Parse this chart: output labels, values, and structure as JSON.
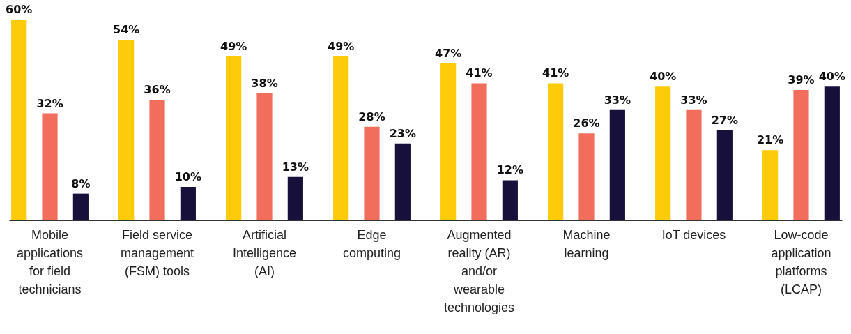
{
  "chart_data": {
    "type": "bar",
    "categories": [
      "Mobile applications for field technicians",
      "Field service management (FSM) tools",
      "Artificial Intelligence (AI)",
      "Edge computing",
      "Augmented reality (AR) and/or wearable technologies",
      "Machine learning",
      "IoT devices",
      "Low-code application platforms (LCAP)"
    ],
    "series": [
      {
        "color": "#fecb0b",
        "values": [
          60,
          54,
          49,
          49,
          47,
          41,
          40,
          21
        ],
        "value_labels": [
          "60%",
          "54%",
          "49%",
          "49%",
          "47%",
          "41%",
          "40%",
          "21%"
        ]
      },
      {
        "color": "#f26e5c",
        "values": [
          32,
          36,
          38,
          28,
          41,
          26,
          33,
          39
        ],
        "value_labels": [
          "32%",
          "36%",
          "38%",
          "28%",
          "41%",
          "26%",
          "33%",
          "39%"
        ]
      },
      {
        "color": "#16103a",
        "values": [
          8,
          10,
          13,
          23,
          12,
          33,
          27,
          40
        ],
        "value_labels": [
          "8%",
          "10%",
          "13%",
          "23%",
          "12%",
          "33%",
          "27%",
          "40%"
        ]
      }
    ],
    "grid": false,
    "legend": false
  }
}
